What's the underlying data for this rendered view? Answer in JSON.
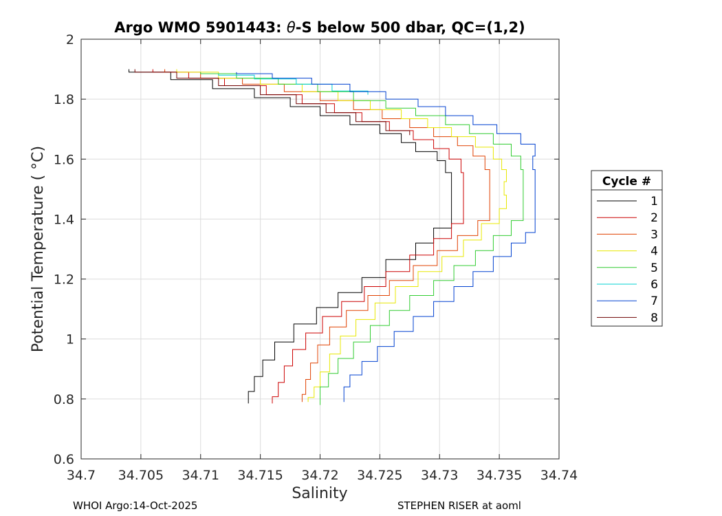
{
  "chart_data": {
    "type": "line",
    "title_parts": {
      "prefix": "Argo WMO 5901443: ",
      "theta": "θ",
      "suffix": "-S below 500 dbar,  QC=(1,2)"
    },
    "xlabel": "Salinity",
    "ylabel": "Potential Temperature ( °C)",
    "xlim": [
      34.7,
      34.74
    ],
    "ylim": [
      0.6,
      2.0
    ],
    "x_ticks": [
      34.7,
      34.705,
      34.71,
      34.715,
      34.72,
      34.725,
      34.73,
      34.735,
      34.74
    ],
    "x_tick_labels": [
      "34.7",
      "34.705",
      "34.71",
      "34.715",
      "34.72",
      "34.725",
      "34.73",
      "34.735",
      "34.74"
    ],
    "y_ticks": [
      0.6,
      0.8,
      1.0,
      1.2,
      1.4,
      1.6,
      1.8,
      2.0
    ],
    "y_tick_labels": [
      "0.6",
      "0.8",
      "1",
      "1.2",
      "1.4",
      "1.6",
      "1.8",
      "2"
    ],
    "grid": true,
    "legend": {
      "title": "Cycle #",
      "placement": "right"
    },
    "series": [
      {
        "name": "1",
        "color": "#000000",
        "points": [
          [
            34.704,
            1.9
          ],
          [
            34.7075,
            1.88
          ],
          [
            34.711,
            1.85
          ],
          [
            34.7145,
            1.82
          ],
          [
            34.7175,
            1.79
          ],
          [
            34.72,
            1.76
          ],
          [
            34.7225,
            1.73
          ],
          [
            34.725,
            1.7
          ],
          [
            34.7268,
            1.67
          ],
          [
            34.728,
            1.64
          ],
          [
            34.7298,
            1.61
          ],
          [
            34.7305,
            1.58
          ],
          [
            34.731,
            1.53
          ],
          [
            34.731,
            1.4
          ],
          [
            34.7295,
            1.34
          ],
          [
            34.728,
            1.3
          ],
          [
            34.7255,
            1.23
          ],
          [
            34.7235,
            1.18
          ],
          [
            34.7215,
            1.13
          ],
          [
            34.7197,
            1.08
          ],
          [
            34.7178,
            1.02
          ],
          [
            34.7162,
            0.96
          ],
          [
            34.7152,
            0.9
          ],
          [
            34.7145,
            0.85
          ],
          [
            34.714,
            0.8
          ],
          [
            34.714,
            0.785
          ]
        ]
      },
      {
        "name": "2",
        "color": "#cc0000",
        "points": [
          [
            34.706,
            1.9
          ],
          [
            34.709,
            1.88
          ],
          [
            34.712,
            1.86
          ],
          [
            34.7155,
            1.83
          ],
          [
            34.7185,
            1.8
          ],
          [
            34.7212,
            1.77
          ],
          [
            34.7235,
            1.74
          ],
          [
            34.7258,
            1.71
          ],
          [
            34.7278,
            1.68
          ],
          [
            34.7295,
            1.65
          ],
          [
            34.7308,
            1.62
          ],
          [
            34.7318,
            1.58
          ],
          [
            34.732,
            1.53
          ],
          [
            34.732,
            1.41
          ],
          [
            34.731,
            1.36
          ],
          [
            34.7295,
            1.31
          ],
          [
            34.7275,
            1.25
          ],
          [
            34.7255,
            1.2
          ],
          [
            34.7237,
            1.15
          ],
          [
            34.7218,
            1.1
          ],
          [
            34.7202,
            1.05
          ],
          [
            34.7188,
            0.99
          ],
          [
            34.7177,
            0.94
          ],
          [
            34.717,
            0.88
          ],
          [
            34.7165,
            0.83
          ],
          [
            34.716,
            0.785
          ]
        ]
      },
      {
        "name": "3",
        "color": "#e04000",
        "points": [
          [
            34.707,
            1.9
          ],
          [
            34.71,
            1.88
          ],
          [
            34.7135,
            1.86
          ],
          [
            34.717,
            1.84
          ],
          [
            34.72,
            1.81
          ],
          [
            34.7228,
            1.78
          ],
          [
            34.7252,
            1.75
          ],
          [
            34.7275,
            1.72
          ],
          [
            34.7295,
            1.69
          ],
          [
            34.7315,
            1.66
          ],
          [
            34.7328,
            1.63
          ],
          [
            34.7338,
            1.59
          ],
          [
            34.7342,
            1.54
          ],
          [
            34.7342,
            1.42
          ],
          [
            34.7332,
            1.37
          ],
          [
            34.7315,
            1.32
          ],
          [
            34.7298,
            1.27
          ],
          [
            34.7278,
            1.22
          ],
          [
            34.7258,
            1.17
          ],
          [
            34.724,
            1.12
          ],
          [
            34.7222,
            1.07
          ],
          [
            34.7208,
            1.01
          ],
          [
            34.7198,
            0.95
          ],
          [
            34.7192,
            0.89
          ],
          [
            34.7188,
            0.84
          ],
          [
            34.7185,
            0.79
          ]
        ]
      },
      {
        "name": "4",
        "color": "#e8e800",
        "points": [
          [
            34.708,
            1.9
          ],
          [
            34.7115,
            1.88
          ],
          [
            34.715,
            1.86
          ],
          [
            34.7185,
            1.84
          ],
          [
            34.7215,
            1.81
          ],
          [
            34.7242,
            1.78
          ],
          [
            34.7268,
            1.75
          ],
          [
            34.729,
            1.72
          ],
          [
            34.731,
            1.69
          ],
          [
            34.733,
            1.66
          ],
          [
            34.7345,
            1.62
          ],
          [
            34.7352,
            1.58
          ],
          [
            34.7356,
            1.55
          ],
          [
            34.7354,
            1.5
          ],
          [
            34.7356,
            1.46
          ],
          [
            34.735,
            1.41
          ],
          [
            34.7335,
            1.36
          ],
          [
            34.732,
            1.3
          ],
          [
            34.7302,
            1.25
          ],
          [
            34.7282,
            1.2
          ],
          [
            34.7263,
            1.15
          ],
          [
            34.7246,
            1.09
          ],
          [
            34.723,
            1.04
          ],
          [
            34.7217,
            0.98
          ],
          [
            34.7208,
            0.92
          ],
          [
            34.72,
            0.86
          ],
          [
            34.7195,
            0.82
          ],
          [
            34.719,
            0.79
          ]
        ]
      },
      {
        "name": "5",
        "color": "#30cc30",
        "points": [
          [
            34.71,
            1.89
          ],
          [
            34.713,
            1.88
          ],
          [
            34.7165,
            1.86
          ],
          [
            34.7198,
            1.84
          ],
          [
            34.7228,
            1.81
          ],
          [
            34.7255,
            1.78
          ],
          [
            34.728,
            1.76
          ],
          [
            34.7305,
            1.73
          ],
          [
            34.7325,
            1.7
          ],
          [
            34.7345,
            1.67
          ],
          [
            34.736,
            1.63
          ],
          [
            34.7368,
            1.59
          ],
          [
            34.737,
            1.54
          ],
          [
            34.737,
            1.42
          ],
          [
            34.736,
            1.37
          ],
          [
            34.7345,
            1.32
          ],
          [
            34.733,
            1.27
          ],
          [
            34.7312,
            1.22
          ],
          [
            34.7295,
            1.17
          ],
          [
            34.7275,
            1.12
          ],
          [
            34.7258,
            1.07
          ],
          [
            34.7242,
            1.02
          ],
          [
            34.7228,
            0.96
          ],
          [
            34.7215,
            0.91
          ],
          [
            34.7207,
            0.86
          ],
          [
            34.72,
            0.82
          ],
          [
            34.72,
            0.78
          ]
        ]
      },
      {
        "name": "6",
        "color": "#00d0d0",
        "points": [
          [
            34.7115,
            1.885
          ],
          [
            34.7145,
            1.875
          ],
          [
            34.718,
            1.86
          ],
          [
            34.721,
            1.84
          ],
          [
            34.724,
            1.815
          ]
        ]
      },
      {
        "name": "7",
        "color": "#0040d0",
        "points": [
          [
            34.713,
            1.89
          ],
          [
            34.716,
            1.88
          ],
          [
            34.7193,
            1.86
          ],
          [
            34.7225,
            1.84
          ],
          [
            34.7255,
            1.81
          ],
          [
            34.7282,
            1.79
          ],
          [
            34.7305,
            1.76
          ],
          [
            34.7328,
            1.73
          ],
          [
            34.7348,
            1.7
          ],
          [
            34.7368,
            1.67
          ],
          [
            34.738,
            1.63
          ],
          [
            34.7378,
            1.59
          ],
          [
            34.738,
            1.54
          ],
          [
            34.738,
            1.37
          ],
          [
            34.7372,
            1.34
          ],
          [
            34.736,
            1.3
          ],
          [
            34.7345,
            1.25
          ],
          [
            34.7328,
            1.2
          ],
          [
            34.7312,
            1.15
          ],
          [
            34.7295,
            1.1
          ],
          [
            34.7278,
            1.05
          ],
          [
            34.7262,
            1.0
          ],
          [
            34.7248,
            0.95
          ],
          [
            34.7235,
            0.9
          ],
          [
            34.7225,
            0.86
          ],
          [
            34.722,
            0.82
          ],
          [
            34.722,
            0.79
          ]
        ]
      },
      {
        "name": "8",
        "color": "#6e0000",
        "points": [
          [
            34.7045,
            1.9
          ],
          [
            34.708,
            1.88
          ],
          [
            34.7115,
            1.86
          ],
          [
            34.715,
            1.83
          ],
          [
            34.718,
            1.8
          ],
          [
            34.7205,
            1.77
          ],
          [
            34.723,
            1.74
          ],
          [
            34.7255,
            1.71
          ],
          [
            34.7275,
            1.68
          ]
        ]
      }
    ]
  },
  "footer": {
    "left": "WHOI Argo:14-Oct-2025",
    "right": "STEPHEN RISER at aoml"
  }
}
